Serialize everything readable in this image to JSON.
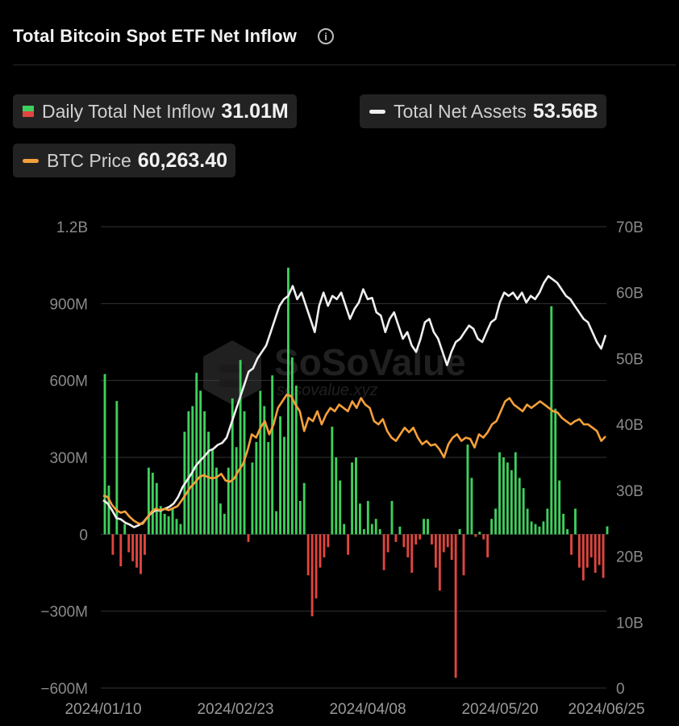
{
  "header": {
    "title": "Total Bitcoin Spot ETF Net Inflow",
    "info_icon": "info-icon"
  },
  "legend": [
    {
      "label": "Daily Total Net Inflow",
      "value": "31.01M",
      "swatch": "bar"
    },
    {
      "label": "Total Net Assets",
      "value": "53.56B",
      "swatch": "line",
      "color": "#f0f0f0"
    },
    {
      "label": "BTC Price",
      "value": "60,263.40",
      "swatch": "line",
      "color": "#f5a03a"
    }
  ],
  "watermark": {
    "brand": "SoSoValue",
    "site": "sosovalue.xyz"
  },
  "colors": {
    "inflow": "#3fcf5c",
    "outflow": "#e0453f",
    "assets": "#f0f0f0",
    "price": "#f5a03a",
    "grid": "#333333",
    "background": "#000000"
  },
  "chart_data": {
    "type": "bar",
    "title": "Total Bitcoin Spot ETF Net Inflow",
    "x_start": "2024/01/10",
    "x_end": "2024/06/25",
    "xticks": [
      "2024/01/10",
      "2024/02/23",
      "2024/04/08",
      "2024/05/20",
      "2024/06/25"
    ],
    "y_left": {
      "ticks": [
        "1.2B",
        "900M",
        "600M",
        "300M",
        "0",
        "−300M",
        "−600M"
      ],
      "ylim": [
        -600,
        1200
      ],
      "unit": "M"
    },
    "y_right": {
      "ticks": [
        "70B",
        "60B",
        "50B",
        "40B",
        "30B",
        "20B",
        "10B",
        "0"
      ],
      "ylim": [
        0,
        70
      ],
      "unit": "B"
    },
    "grid": true,
    "series": [
      {
        "name": "Daily Total Net Inflow",
        "type": "bar",
        "axis": "left",
        "values": [
          625,
          190,
          -80,
          520,
          -125,
          40,
          -70,
          -105,
          -130,
          -155,
          -80,
          260,
          240,
          200,
          110,
          80,
          70,
          100,
          60,
          40,
          400,
          480,
          500,
          630,
          560,
          480,
          400,
          330,
          260,
          120,
          80,
          260,
          530,
          340,
          680,
          480,
          -30,
          280,
          360,
          560,
          500,
          360,
          620,
          90,
          460,
          380,
          1040,
          690,
          580,
          130,
          200,
          -160,
          -320,
          -250,
          -130,
          -90,
          -50,
          420,
          300,
          210,
          40,
          -80,
          280,
          300,
          120,
          20,
          130,
          40,
          60,
          20,
          -140,
          -70,
          130,
          -30,
          30,
          -50,
          -90,
          -150,
          -40,
          -20,
          60,
          60,
          -40,
          -130,
          -220,
          -70,
          -50,
          -100,
          -560,
          20,
          -160,
          350,
          220,
          -10,
          10,
          -20,
          -90,
          60,
          100,
          320,
          300,
          280,
          250,
          320,
          220,
          180,
          100,
          50,
          40,
          30,
          50,
          100,
          890,
          490,
          210,
          80,
          20,
          -80,
          100,
          -130,
          -180,
          -130,
          -90,
          -150,
          -120,
          -170,
          31
        ]
      },
      {
        "name": "Total Net Assets",
        "type": "line",
        "axis": "right",
        "values": [
          28.5,
          28.0,
          27.0,
          25.8,
          25.6,
          25.1,
          24.8,
          24.4,
          24.7,
          25.1,
          25.9,
          26.6,
          27.0,
          26.9,
          27.2,
          27.5,
          28.0,
          29.0,
          30.5,
          31.5,
          32.5,
          33.7,
          34.5,
          35.2,
          36.0,
          36.3,
          36.9,
          37.2,
          38.0,
          40.0,
          42.0,
          44.0,
          46.0,
          48.0,
          48.5,
          50.0,
          51.0,
          52.0,
          54.0,
          56.0,
          58.0,
          59.0,
          59.5,
          61.0,
          59.0,
          60.0,
          58.0,
          56.0,
          54.0,
          58.0,
          60.0,
          58.0,
          59.5,
          59.0,
          60.0,
          58.0,
          56.0,
          57.5,
          58.5,
          60.5,
          59.0,
          59.2,
          57.0,
          56.5,
          54.0,
          56.0,
          57.0,
          55.0,
          53.0,
          54.0,
          52.0,
          51.0,
          53.0,
          55.5,
          56.0,
          54.0,
          53.0,
          51.0,
          49.0,
          51.0,
          52.5,
          53.0,
          54.0,
          55.0,
          54.5,
          53.0,
          52.5,
          54.0,
          55.5,
          56.0,
          58.5,
          60.0,
          59.5,
          60.0,
          59.0,
          60.0,
          58.5,
          59.5,
          59.0,
          60.0,
          61.5,
          62.5,
          62.0,
          61.5,
          60.5,
          59.5,
          59.0,
          58.0,
          57.0,
          56.0,
          55.5,
          54.0,
          52.5,
          51.5,
          53.56
        ]
      },
      {
        "name": "BTC Price",
        "type": "line",
        "axis": "right",
        "values": [
          29.2,
          29.0,
          27.8,
          27.0,
          26.6,
          26.8,
          26.0,
          25.4,
          25.0,
          24.9,
          25.8,
          26.7,
          27.2,
          27.0,
          27.2,
          27.0,
          27.3,
          27.6,
          28.5,
          29.5,
          30.5,
          31.2,
          32.0,
          32.3,
          32.0,
          31.8,
          32.0,
          32.5,
          31.5,
          31.3,
          31.8,
          33.0,
          34.0,
          36.0,
          38.5,
          38.0,
          39.5,
          40.5,
          38.5,
          40.0,
          42.5,
          43.5,
          44.5,
          44.3,
          43.0,
          42.0,
          39.0,
          41.0,
          40.5,
          42.0,
          40.0,
          41.5,
          42.5,
          42.0,
          43.0,
          42.5,
          42.0,
          43.5,
          42.5,
          44.0,
          43.0,
          42.5,
          40.5,
          40.0,
          40.8,
          39.0,
          38.0,
          37.5,
          38.5,
          39.5,
          38.8,
          39.5,
          38.0,
          37.0,
          37.5,
          36.8,
          37.0,
          36.2,
          35.0,
          37.0,
          38.0,
          38.5,
          37.5,
          38.0,
          37.8,
          36.5,
          38.5,
          38.0,
          38.8,
          40.0,
          40.5,
          42.0,
          43.5,
          44.0,
          43.0,
          42.5,
          42.0,
          43.0,
          42.5,
          43.0,
          43.5,
          43.0,
          42.5,
          42.0,
          41.8,
          41.0,
          40.5,
          40.0,
          40.5,
          40.8,
          40.0,
          40.0,
          39.5,
          39.0,
          37.5,
          38.2
        ]
      }
    ]
  }
}
